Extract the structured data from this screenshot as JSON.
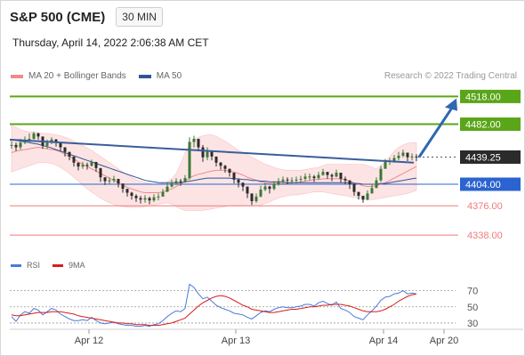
{
  "header": {
    "symbol": "S&P 500 (CME)",
    "timeframe": "30 MIN",
    "datetime": "Thursday, April 14, 2022 2:06:38 AM CET"
  },
  "legend": {
    "ma20_label": "MA 20 + Bollinger Bands",
    "ma50_label": "MA 50",
    "credit": "Research © 2022 Trading Central"
  },
  "rsi_legend": {
    "rsi_label": "RSI",
    "ma9_label": "9MA"
  },
  "colors": {
    "up_candle": "#3a7a36",
    "down_candle": "#2b2b2b",
    "bollinger_fill": "#fde0e0",
    "ma20": "#f08a8a",
    "ma50": "#2f5597",
    "resistance": "#5aa619",
    "support_blue": "#2b63d0",
    "support_red": "#f07b7b",
    "current_price": "#2b2b2b",
    "trendline": "#3a5e9c",
    "arrow": "#2f68b0",
    "rsi_line": "#4a7ad8",
    "rsi_ma": "#d81c1c"
  },
  "chart_data": {
    "type": "candlestick",
    "y_range": [
      4315,
      4530
    ],
    "x_labels": [
      "Apr 12",
      "Apr 13",
      "Apr 14",
      "Apr 20"
    ],
    "levels": [
      {
        "label": "4518.00",
        "value": 4518.0,
        "kind": "resistance"
      },
      {
        "label": "4482.00",
        "value": 4482.0,
        "kind": "resistance"
      },
      {
        "label": "4439.25",
        "value": 4439.25,
        "kind": "current"
      },
      {
        "label": "4404.00",
        "value": 4404.0,
        "kind": "support-blue"
      },
      {
        "label": "4376.00",
        "value": 4376.0,
        "kind": "support-red"
      },
      {
        "label": "4338.00",
        "value": 4338.0,
        "kind": "support-red"
      }
    ],
    "close": [
      4455,
      4452,
      4458,
      4461,
      4463,
      4470,
      4466,
      4454,
      4458,
      4462,
      4458,
      4452,
      4446,
      4440,
      4432,
      4427,
      4429,
      4428,
      4433,
      4425,
      4413,
      4408,
      4409,
      4411,
      4405,
      4398,
      4393,
      4389,
      4386,
      4384,
      4386,
      4383,
      4387,
      4388,
      4394,
      4401,
      4405,
      4408,
      4407,
      4412,
      4459,
      4463,
      4452,
      4439,
      4447,
      4440,
      4432,
      4428,
      4424,
      4419,
      4410,
      4406,
      4401,
      4392,
      4382,
      4388,
      4397,
      4401,
      4398,
      4404,
      4408,
      4410,
      4409,
      4409,
      4410,
      4411,
      4414,
      4414,
      4412,
      4416,
      4420,
      4416,
      4414,
      4419,
      4411,
      4409,
      4404,
      4394,
      4389,
      4384,
      4392,
      4399,
      4409,
      4424,
      4433,
      4434,
      4438,
      4441,
      4445,
      4439,
      4440,
      4439
    ],
    "high": [
      4460,
      4458,
      4463,
      4466,
      4470,
      4472,
      4471,
      4460,
      4462,
      4465,
      4463,
      4457,
      4451,
      4445,
      4437,
      4432,
      4433,
      4432,
      4436,
      4429,
      4418,
      4413,
      4413,
      4415,
      4410,
      4403,
      4398,
      4394,
      4391,
      4389,
      4390,
      4388,
      4391,
      4392,
      4398,
      4406,
      4410,
      4412,
      4411,
      4416,
      4465,
      4467,
      4463,
      4455,
      4452,
      4447,
      4437,
      4433,
      4429,
      4424,
      4416,
      4411,
      4406,
      4398,
      4388,
      4392,
      4402,
      4406,
      4402,
      4408,
      4412,
      4414,
      4413,
      4413,
      4414,
      4415,
      4418,
      4418,
      4416,
      4420,
      4424,
      4420,
      4418,
      4423,
      4418,
      4414,
      4409,
      4400,
      4394,
      4389,
      4396,
      4404,
      4413,
      4428,
      4437,
      4438,
      4442,
      4446,
      4449,
      4445,
      4444,
      4443
    ],
    "low": [
      4450,
      4447,
      4449,
      4456,
      4458,
      4462,
      4462,
      4450,
      4450,
      4456,
      4453,
      4447,
      4440,
      4435,
      4427,
      4422,
      4424,
      4423,
      4427,
      4420,
      4407,
      4403,
      4404,
      4406,
      4400,
      4393,
      4388,
      4384,
      4381,
      4379,
      4380,
      4378,
      4381,
      4383,
      4388,
      4395,
      4400,
      4403,
      4402,
      4406,
      4410,
      4452,
      4447,
      4433,
      4435,
      4435,
      4427,
      4423,
      4419,
      4414,
      4405,
      4400,
      4395,
      4386,
      4377,
      4380,
      4387,
      4395,
      4392,
      4396,
      4402,
      4405,
      4404,
      4404,
      4405,
      4406,
      4408,
      4409,
      4407,
      4410,
      4415,
      4411,
      4408,
      4413,
      4406,
      4404,
      4398,
      4389,
      4384,
      4380,
      4383,
      4392,
      4400,
      4407,
      4426,
      4429,
      4432,
      4435,
      4439,
      4434,
      4435,
      4434
    ],
    "ma20": [
      4445,
      4447,
      4448,
      4449,
      4450,
      4451,
      4452,
      4451,
      4450,
      4449,
      4448,
      4446,
      4443,
      4440,
      4437,
      4433,
      4430,
      4427,
      4424,
      4421,
      4418,
      4415,
      4412,
      4409,
      4406,
      4403,
      4400,
      4398,
      4396,
      4394,
      4393,
      4393,
      4393,
      4393,
      4394,
      4396,
      4398,
      4401,
      4404,
      4408,
      4412,
      4415,
      4417,
      4418,
      4420,
      4421,
      4422,
      4422,
      4422,
      4421,
      4420,
      4418,
      4416,
      4413,
      4411,
      4409,
      4407,
      4406,
      4405,
      4405,
      4405,
      4405,
      4405,
      4406,
      4406,
      4407,
      4408,
      4409,
      4410,
      4410,
      4411,
      4411,
      4411,
      4411,
      4411,
      4410,
      4408,
      4406,
      4404,
      4402,
      4401,
      4401,
      4402,
      4404,
      4406,
      4409,
      4412,
      4415,
      4418,
      4421,
      4424,
      4427
    ],
    "ma50": [
      4462,
      4461,
      4460,
      4459,
      4458,
      4457,
      4456,
      4454,
      4453,
      4451,
      4449,
      4447,
      4445,
      4443,
      4441,
      4439,
      4437,
      4435,
      4433,
      4431,
      4429,
      4427,
      4425,
      4423,
      4421,
      4419,
      4417,
      4415,
      4413,
      4411,
      4409,
      4408,
      4407,
      4406,
      4406,
      4406,
      4406,
      4406,
      4406,
      4407,
      4408,
      4409,
      4410,
      4411,
      4412,
      4412,
      4412,
      4412,
      4412,
      4412,
      4411,
      4411,
      4410,
      4410,
      4409,
      4409,
      4408,
      4408,
      4407,
      4407,
      4407,
      4407,
      4406,
      4406,
      4406,
      4406,
      4406,
      4406,
      4406,
      4406,
      4406,
      4406,
      4406,
      4406,
      4406,
      4406,
      4406,
      4405,
      4405,
      4404,
      4404,
      4404,
      4404,
      4405,
      4405,
      4406,
      4407,
      4408,
      4409,
      4410,
      4411,
      4412
    ],
    "bb_upper": [
      4480,
      4478,
      4475,
      4473,
      4472,
      4472,
      4471,
      4470,
      4470,
      4469,
      4468,
      4467,
      4465,
      4463,
      4460,
      4457,
      4454,
      4451,
      4448,
      4444,
      4440,
      4436,
      4432,
      4428,
      4424,
      4420,
      4416,
      4413,
      4410,
      4408,
      4406,
      4405,
      4404,
      4404,
      4405,
      4407,
      4411,
      4418,
      4430,
      4445,
      4455,
      4462,
      4465,
      4467,
      4468,
      4468,
      4466,
      4463,
      4460,
      4456,
      4452,
      4448,
      4445,
      4442,
      4439,
      4436,
      4433,
      4430,
      4428,
      4426,
      4424,
      4423,
      4422,
      4422,
      4422,
      4422,
      4423,
      4424,
      4425,
      4426,
      4428,
      4430,
      4430,
      4430,
      4430,
      4430,
      4430,
      4430,
      4430,
      4430,
      4428,
      4426,
      4424,
      4428,
      4433,
      4440,
      4447,
      4452,
      4455,
      4457,
      4458,
      4458
    ],
    "bb_lower": [
      4420,
      4422,
      4424,
      4426,
      4428,
      4430,
      4432,
      4432,
      4432,
      4431,
      4429,
      4426,
      4422,
      4418,
      4413,
      4408,
      4403,
      4398,
      4394,
      4390,
      4386,
      4383,
      4380,
      4378,
      4376,
      4375,
      4374,
      4374,
      4374,
      4374,
      4375,
      4376,
      4377,
      4378,
      4379,
      4380,
      4378,
      4375,
      4372,
      4370,
      4370,
      4370,
      4370,
      4370,
      4371,
      4372,
      4373,
      4374,
      4375,
      4376,
      4377,
      4377,
      4377,
      4376,
      4376,
      4376,
      4377,
      4379,
      4381,
      4384,
      4386,
      4388,
      4389,
      4390,
      4390,
      4391,
      4392,
      4393,
      4394,
      4394,
      4394,
      4393,
      4392,
      4391,
      4390,
      4389,
      4388,
      4387,
      4386,
      4385,
      4384,
      4384,
      4385,
      4386,
      4387,
      4388,
      4389,
      4390,
      4391,
      4392,
      4394,
      4396
    ],
    "trendline": {
      "x_start": 0,
      "y_start": 4462,
      "x_end": 91,
      "y_end": 4432
    },
    "forecast_arrow": {
      "from_value": 4439.25,
      "to_value": 4512
    },
    "rsi": {
      "y_range": [
        20,
        85
      ],
      "ticks": [
        70,
        50,
        30
      ],
      "values": [
        38,
        32,
        40,
        44,
        42,
        48,
        46,
        40,
        44,
        48,
        46,
        41,
        38,
        35,
        33,
        33,
        34,
        33,
        37,
        33,
        30,
        29,
        30,
        31,
        29,
        28,
        27,
        27,
        26,
        26,
        27,
        26,
        28,
        29,
        33,
        38,
        42,
        45,
        44,
        48,
        78,
        74,
        66,
        60,
        62,
        57,
        52,
        49,
        47,
        45,
        42,
        41,
        40,
        37,
        35,
        39,
        43,
        45,
        44,
        47,
        49,
        50,
        49,
        49,
        50,
        51,
        53,
        53,
        51,
        55,
        57,
        54,
        52,
        56,
        48,
        46,
        43,
        38,
        36,
        34,
        40,
        45,
        51,
        58,
        62,
        63,
        66,
        67,
        70,
        66,
        67,
        66
      ],
      "ma9": [
        40,
        39,
        39,
        40,
        41,
        42,
        43,
        43,
        43,
        44,
        44,
        44,
        43,
        42,
        41,
        39,
        38,
        37,
        36,
        35,
        34,
        33,
        32,
        31,
        30,
        30,
        29,
        29,
        28,
        28,
        28,
        27,
        27,
        27,
        28,
        29,
        30,
        32,
        34,
        36,
        41,
        46,
        51,
        55,
        58,
        61,
        63,
        64,
        63,
        61,
        58,
        55,
        52,
        50,
        47,
        46,
        45,
        44,
        43,
        43,
        44,
        45,
        46,
        47,
        47,
        48,
        49,
        50,
        50,
        51,
        52,
        52,
        53,
        53,
        53,
        52,
        51,
        49,
        47,
        45,
        44,
        44,
        44,
        45,
        47,
        50,
        53,
        57,
        60,
        63,
        65,
        66
      ]
    }
  }
}
